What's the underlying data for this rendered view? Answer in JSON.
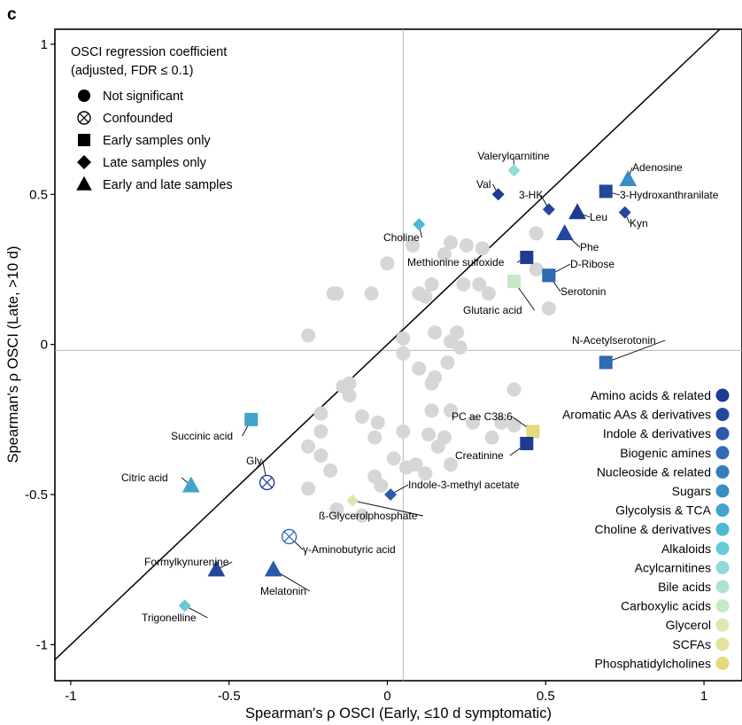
{
  "panel_label": "c",
  "chart_data": {
    "type": "scatter",
    "xlabel": "Spearman's ρ OSCI (Early, ≤10 d symptomatic)",
    "ylabel": "Spearman's ρ OSCI (Late, >10 d)",
    "xlim": [
      -1.05,
      1.12
    ],
    "ylim": [
      -1.12,
      1.05
    ],
    "xticks": [
      "-1",
      "-0.5",
      "0",
      "0.5",
      "1"
    ],
    "yticks": [
      "1",
      "0.5",
      "0",
      "-0.5",
      "-1"
    ],
    "hline": -0.02,
    "vline": 0.05,
    "diagonal": true,
    "shape_legend": {
      "title": [
        "OSCI regression coefficient",
        "(adjusted, FDR ≤ 0.1)"
      ],
      "items": [
        {
          "shape": "circle",
          "label": "Not significant"
        },
        {
          "shape": "confounded",
          "label": "Confounded"
        },
        {
          "shape": "square",
          "label": "Early samples only"
        },
        {
          "shape": "diamond",
          "label": "Late samples only"
        },
        {
          "shape": "triangle",
          "label": "Early and late samples"
        }
      ]
    },
    "class_legend": [
      {
        "label": "Amino acids & related",
        "color": "#1f3a93"
      },
      {
        "label": "Aromatic AAs & derivatives",
        "color": "#24489e"
      },
      {
        "label": "Indole & derivatives",
        "color": "#2b5aaa"
      },
      {
        "label": "Biogenic amines",
        "color": "#2f6bb3"
      },
      {
        "label": "Nucleoside & related",
        "color": "#347dbd"
      },
      {
        "label": "Sugars",
        "color": "#3a8ec5"
      },
      {
        "label": "Glycolysis & TCA",
        "color": "#42a3cb"
      },
      {
        "label": "Choline & derivatives",
        "color": "#4db8d1"
      },
      {
        "label": "Alkaloids",
        "color": "#66cbd6"
      },
      {
        "label": "Acylcarnitines",
        "color": "#8fdbd7"
      },
      {
        "label": "Bile acids",
        "color": "#aee3d3"
      },
      {
        "label": "Carboxylic acids",
        "color": "#c6e8c4"
      },
      {
        "label": "Glycerol",
        "color": "#dbe9b0"
      },
      {
        "label": "SCFAs",
        "color": "#e3e39a"
      },
      {
        "label": "Phosphatidylcholines",
        "color": "#e2da7c"
      }
    ],
    "labeled_points": [
      {
        "label": "Valerylcarnitine",
        "x": 0.4,
        "y": 0.58,
        "shape": "diamond",
        "color": "#8fdbd7"
      },
      {
        "label": "Adenosine",
        "x": 0.76,
        "y": 0.55,
        "shape": "triangle",
        "color": "#3a8ec5"
      },
      {
        "label": "Val",
        "x": 0.35,
        "y": 0.5,
        "shape": "diamond",
        "color": "#1f3a93"
      },
      {
        "label": "3-HK",
        "x": 0.51,
        "y": 0.45,
        "shape": "diamond",
        "color": "#24489e"
      },
      {
        "label": "3-Hydroxanthranilate",
        "x": 0.69,
        "y": 0.51,
        "shape": "square",
        "color": "#24489e"
      },
      {
        "label": "Leu",
        "x": 0.6,
        "y": 0.44,
        "shape": "triangle",
        "color": "#1f3a93"
      },
      {
        "label": "Kyn",
        "x": 0.75,
        "y": 0.44,
        "shape": "diamond",
        "color": "#24489e"
      },
      {
        "label": "Choline",
        "x": 0.1,
        "y": 0.4,
        "shape": "diamond",
        "color": "#4db8d1"
      },
      {
        "label": "Phe",
        "x": 0.56,
        "y": 0.37,
        "shape": "triangle",
        "color": "#24489e"
      },
      {
        "label": "Methionine sulfoxide",
        "x": 0.44,
        "y": 0.29,
        "shape": "square",
        "color": "#1f3a93"
      },
      {
        "label": "D-Ribose",
        "x": 0.51,
        "y": 0.23,
        "shape": "square",
        "color": "#3a8ec5"
      },
      {
        "label": "Serotonin",
        "x": 0.51,
        "y": 0.23,
        "shape": "square",
        "color": "#2f6bb3"
      },
      {
        "label": "Glutaric acid",
        "x": 0.4,
        "y": 0.21,
        "shape": "square",
        "color": "#c6e8c4"
      },
      {
        "label": "N-Acetylserotonin",
        "x": 0.69,
        "y": -0.06,
        "shape": "square",
        "color": "#2f6bb3"
      },
      {
        "label": "PC ae C38:6",
        "x": 0.46,
        "y": -0.29,
        "shape": "square",
        "color": "#e2da7c"
      },
      {
        "label": "Creatinine",
        "x": 0.44,
        "y": -0.33,
        "shape": "square",
        "color": "#1f3a93"
      },
      {
        "label": "Succinic acid",
        "x": -0.43,
        "y": -0.25,
        "shape": "square",
        "color": "#42a3cb"
      },
      {
        "label": "Gly",
        "x": -0.38,
        "y": -0.46,
        "shape": "confounded",
        "color": "#1f3a93"
      },
      {
        "label": "Citric acid",
        "x": -0.62,
        "y": -0.47,
        "shape": "triangle",
        "color": "#42a3cb"
      },
      {
        "label": "Indole-3-methyl acetate",
        "x": 0.01,
        "y": -0.5,
        "shape": "diamond",
        "color": "#2b5aaa"
      },
      {
        "label": "ß-Glycerolphosphate",
        "x": -0.11,
        "y": -0.52,
        "shape": "diamond",
        "color": "#dbe9b0"
      },
      {
        "label": "γ-Aminobutyric acid",
        "x": -0.31,
        "y": -0.64,
        "shape": "confounded",
        "color": "#2f6bb3"
      },
      {
        "label": "Formylkynurenine",
        "x": -0.54,
        "y": -0.75,
        "shape": "triangle",
        "color": "#24489e"
      },
      {
        "label": "Melatonin",
        "x": -0.36,
        "y": -0.75,
        "shape": "triangle",
        "color": "#2b5aaa"
      },
      {
        "label": "Trigonelline",
        "x": -0.64,
        "y": -0.87,
        "shape": "diamond",
        "color": "#66cbd6"
      }
    ],
    "unlabeled_points": [
      [
        -0.25,
        0.03
      ],
      [
        -0.17,
        0.17
      ],
      [
        -0.16,
        0.17
      ],
      [
        -0.05,
        0.17
      ],
      [
        0.0,
        0.27
      ],
      [
        0.08,
        0.33
      ],
      [
        0.1,
        0.17
      ],
      [
        0.12,
        0.16
      ],
      [
        0.14,
        0.2
      ],
      [
        0.2,
        0.34
      ],
      [
        0.24,
        0.2
      ],
      [
        0.29,
        0.2
      ],
      [
        0.3,
        0.32
      ],
      [
        0.32,
        0.17
      ],
      [
        0.18,
        0.3
      ],
      [
        0.25,
        0.33
      ],
      [
        0.47,
        0.37
      ],
      [
        0.47,
        0.25
      ],
      [
        0.51,
        0.12
      ],
      [
        0.4,
        -0.15
      ],
      [
        0.4,
        -0.27
      ],
      [
        0.36,
        -0.26
      ],
      [
        0.05,
        0.02
      ],
      [
        0.15,
        0.04
      ],
      [
        0.22,
        0.04
      ],
      [
        0.2,
        0.01
      ],
      [
        0.23,
        -0.01
      ],
      [
        0.19,
        -0.06
      ],
      [
        0.15,
        -0.11
      ],
      [
        0.14,
        -0.13
      ],
      [
        0.1,
        -0.08
      ],
      [
        0.05,
        -0.03
      ],
      [
        0.14,
        -0.22
      ],
      [
        0.2,
        -0.22
      ],
      [
        0.27,
        -0.26
      ],
      [
        0.33,
        -0.31
      ],
      [
        0.13,
        -0.3
      ],
      [
        0.2,
        -0.4
      ],
      [
        0.12,
        -0.43
      ],
      [
        0.02,
        -0.38
      ],
      [
        -0.03,
        -0.26
      ],
      [
        -0.08,
        -0.24
      ],
      [
        -0.04,
        -0.31
      ],
      [
        -0.12,
        -0.13
      ],
      [
        -0.12,
        -0.17
      ],
      [
        -0.21,
        -0.23
      ],
      [
        -0.21,
        -0.29
      ],
      [
        -0.25,
        -0.34
      ],
      [
        -0.21,
        -0.37
      ],
      [
        -0.18,
        -0.42
      ],
      [
        -0.25,
        -0.48
      ],
      [
        -0.16,
        -0.55
      ],
      [
        -0.08,
        -0.57
      ],
      [
        -0.04,
        -0.44
      ],
      [
        -0.02,
        -0.47
      ],
      [
        0.05,
        -0.29
      ],
      [
        0.06,
        -0.41
      ],
      [
        0.09,
        -0.4
      ],
      [
        -0.14,
        -0.14
      ],
      [
        0.16,
        -0.34
      ],
      [
        0.18,
        -0.31
      ]
    ]
  }
}
